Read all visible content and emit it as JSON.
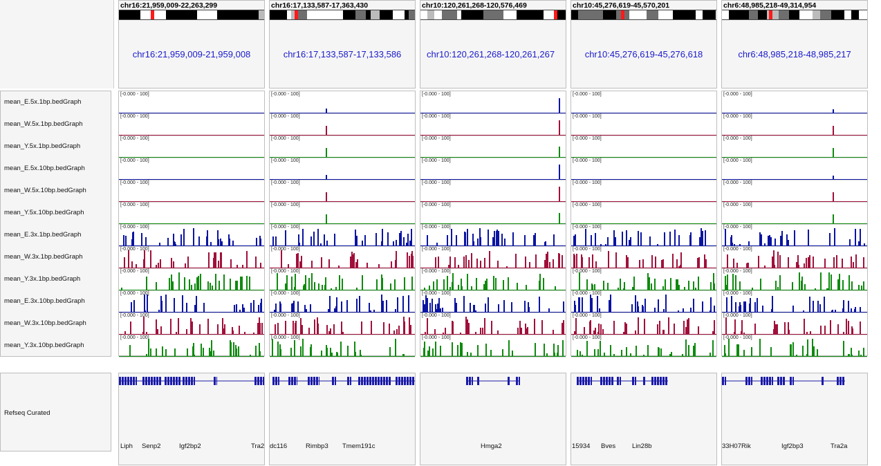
{
  "tracks": [
    {
      "name": "mean_E.5x.1bp.bedGraph",
      "color": "#0a14a0"
    },
    {
      "name": "mean_W.5x.1bp.bedGraph",
      "color": "#a0103a"
    },
    {
      "name": "mean_Y.5x.1bp.bedGraph",
      "color": "#0f8a0f"
    },
    {
      "name": "mean_E.5x.10bp.bedGraph",
      "color": "#0a14a0"
    },
    {
      "name": "mean_W.5x.10bp.bedGraph",
      "color": "#a0103a"
    },
    {
      "name": "mean_Y.5x.10bp.bedGraph",
      "color": "#0f8a0f"
    },
    {
      "name": "mean_E.3x.1bp.bedGraph",
      "color": "#0a14a0"
    },
    {
      "name": "mean_W.3x.1bp.bedGraph",
      "color": "#a0103a"
    },
    {
      "name": "mean_Y.3x.1bp.bedGraph",
      "color": "#0f8a0f"
    },
    {
      "name": "mean_E.3x.10bp.bedGraph",
      "color": "#0a14a0"
    },
    {
      "name": "mean_W.3x.10bp.bedGraph",
      "color": "#a0103a"
    },
    {
      "name": "mean_Y.3x.10bp.bedGraph",
      "color": "#0f8a0f"
    }
  ],
  "data_range": "[-0.000 - 100]",
  "gene_track_name": "Refseq Curated",
  "gene_color": "#1a1aa8",
  "marker_color": "#ff1a1a",
  "panels": [
    {
      "locus": "chr16:21,959,009-22,263,299",
      "coord": "chr16:21,959,009-21,959,008",
      "genes": [
        "Liph",
        "Senp2",
        "Igf2bp2",
        "Tra2"
      ]
    },
    {
      "locus": "chr16:17,133,587-17,363,430",
      "coord": "chr16:17,133,587-17,133,586",
      "genes": [
        "dc116",
        "Rimbp3",
        "Tmem191c"
      ]
    },
    {
      "locus": "chr10:120,261,268-120,576,469",
      "coord": "chr10:120,261,268-120,261,267",
      "genes": [
        "Hmga2"
      ]
    },
    {
      "locus": "chr10:45,276,619-45,570,201",
      "coord": "chr10:45,276,619-45,276,618",
      "genes": [
        "15934",
        "Bves",
        "Lin28b"
      ]
    },
    {
      "locus": "chr6:48,985,218-49,314,954",
      "coord": "chr6:48,985,218-48,985,217",
      "genes": [
        "33H07Rik",
        "Igf2bp3",
        "Tra2a"
      ]
    }
  ]
}
